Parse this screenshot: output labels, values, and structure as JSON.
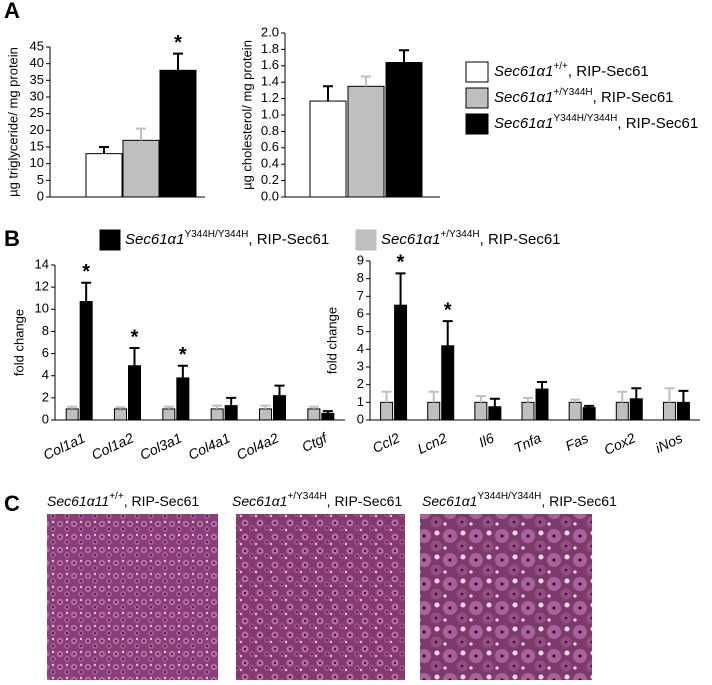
{
  "panel_labels": [
    "A",
    "B",
    "C"
  ],
  "chart_data": [
    {
      "type": "bar",
      "ylabel": "µg triglyceride/ mg protein",
      "ylim": [
        0,
        45
      ],
      "yticks": [
        0,
        5,
        10,
        15,
        20,
        25,
        30,
        35,
        40,
        45
      ],
      "series": [
        {
          "name": {
            "gene": "Sec61α1",
            "genotype": "+/+",
            "strain": ", RIP-Sec61"
          },
          "color": "#ffffff",
          "values": [
            13
          ],
          "errors": [
            2
          ]
        },
        {
          "name": {
            "gene": "Sec61α1",
            "genotype": "+/Y344H",
            "strain": ", RIP-Sec61"
          },
          "color": "#bfbfbf",
          "values": [
            17
          ],
          "errors": [
            3.5
          ]
        },
        {
          "name": {
            "gene": "Sec61α1",
            "genotype": "Y344H/Y344H",
            "strain": ", RIP-Sec61"
          },
          "color": "#000000",
          "values": [
            38
          ],
          "errors": [
            5
          ],
          "annotations": [
            "*"
          ]
        }
      ]
    },
    {
      "type": "bar",
      "ylabel": "µg cholesterol/ mg protein",
      "ylim": [
        0,
        2
      ],
      "yticks": [
        {
          "value": 0,
          "label": "0.0"
        },
        0.2,
        0.4,
        0.6,
        0.8,
        {
          "value": 1,
          "label": "1.0"
        },
        1.2,
        1.4,
        1.6,
        1.8,
        {
          "value": 2,
          "label": "2.0"
        }
      ],
      "series": [
        {
          "color": "#ffffff",
          "values": [
            1.17
          ],
          "errors": [
            0.18
          ]
        },
        {
          "color": "#bfbfbf",
          "values": [
            1.35
          ],
          "errors": [
            0.12
          ]
        },
        {
          "color": "#000000",
          "values": [
            1.64
          ],
          "errors": [
            0.15
          ]
        }
      ]
    },
    {
      "type": "bar",
      "ylabel": "fold change",
      "ylim": [
        0,
        14
      ],
      "yticks": [
        0,
        2,
        4,
        6,
        8,
        10,
        12,
        14
      ],
      "categories": [
        "Col1a1",
        "Col1a2",
        "Col3a1",
        "Col4a1",
        "Col4a2",
        "Ctgf"
      ],
      "series": [
        {
          "name": {
            "gene": "Sec61α1",
            "genotype": "Y344H/Y344H",
            "strain": ", RIP-Sec61"
          },
          "color": "#000000",
          "values": [
            10.7,
            4.9,
            3.8,
            1.3,
            2.2,
            0.6
          ],
          "errors": [
            1.7,
            1.6,
            1.1,
            0.7,
            0.9,
            0.2
          ],
          "annotations": [
            "*",
            "*",
            "*",
            null,
            null,
            null
          ]
        },
        {
          "name": {
            "gene": "Sec61α1",
            "genotype": "+/Y344H",
            "strain": ", RIP-Sec61"
          },
          "color": "#bfbfbf",
          "values": [
            1,
            1,
            1,
            1,
            1,
            1
          ],
          "errors": [
            0.2,
            0.15,
            0.2,
            0.3,
            0.3,
            0.2
          ]
        }
      ]
    },
    {
      "type": "bar",
      "ylabel": "fold change",
      "ylim": [
        0,
        9
      ],
      "yticks": [
        0,
        1,
        2,
        3,
        4,
        5,
        6,
        7,
        8,
        9
      ],
      "categories": [
        "Ccl2",
        "Lcn2",
        "Il6",
        "Tnfa",
        "Fas",
        "Cox2",
        "iNos"
      ],
      "series": [
        {
          "color": "#000000",
          "values": [
            6.5,
            4.2,
            0.75,
            1.75,
            0.7,
            1.2,
            1.0
          ],
          "errors": [
            1.8,
            1.4,
            0.45,
            0.4,
            0.1,
            0.6,
            0.65
          ],
          "annotations": [
            "*",
            "*",
            null,
            null,
            null,
            null,
            null
          ]
        },
        {
          "color": "#bfbfbf",
          "values": [
            1,
            1,
            1,
            1,
            1,
            1,
            1
          ],
          "errors": [
            0.6,
            0.6,
            0.35,
            0.25,
            0.15,
            0.6,
            0.8
          ]
        }
      ]
    }
  ],
  "histology": [
    {
      "caption": {
        "gene": "Sec61α11",
        "genotype": "+/+",
        "strain": ", RIP-Sec61"
      }
    },
    {
      "caption": {
        "gene": "Sec61α1",
        "genotype": "+/Y344H",
        "strain": ", RIP-Sec61"
      }
    },
    {
      "caption": {
        "gene": "Sec61α1",
        "genotype": "Y344H/Y344H",
        "strain": ", RIP-Sec61"
      }
    }
  ]
}
